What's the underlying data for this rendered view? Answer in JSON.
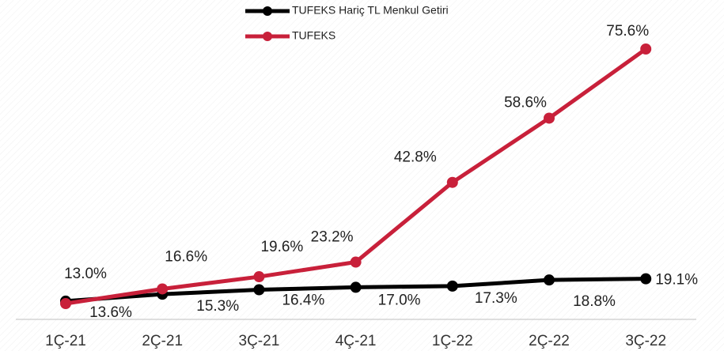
{
  "chart_data": {
    "type": "line",
    "categories": [
      "1Ç-21",
      "2Ç-21",
      "3Ç-21",
      "4Ç-21",
      "1Ç-22",
      "2Ç-22",
      "3Ç-22"
    ],
    "series": [
      {
        "name": "TUFEKS Hariç TL Menkul Getiri",
        "color": "#000000",
        "values": [
          13.6,
          15.3,
          16.4,
          17.0,
          17.3,
          18.8,
          19.1
        ],
        "value_labels": [
          "13.6%",
          "15.3%",
          "16.4%",
          "17.0%",
          "17.3%",
          "18.8%",
          "19.1%"
        ]
      },
      {
        "name": "TUFEKS",
        "color": "#c8203a",
        "values": [
          13.0,
          16.6,
          19.6,
          23.2,
          42.8,
          58.6,
          75.6
        ],
        "value_labels": [
          "13.0%",
          "16.6%",
          "19.6%",
          "23.2%",
          "42.8%",
          "58.6%",
          "75.6%"
        ]
      }
    ]
  }
}
